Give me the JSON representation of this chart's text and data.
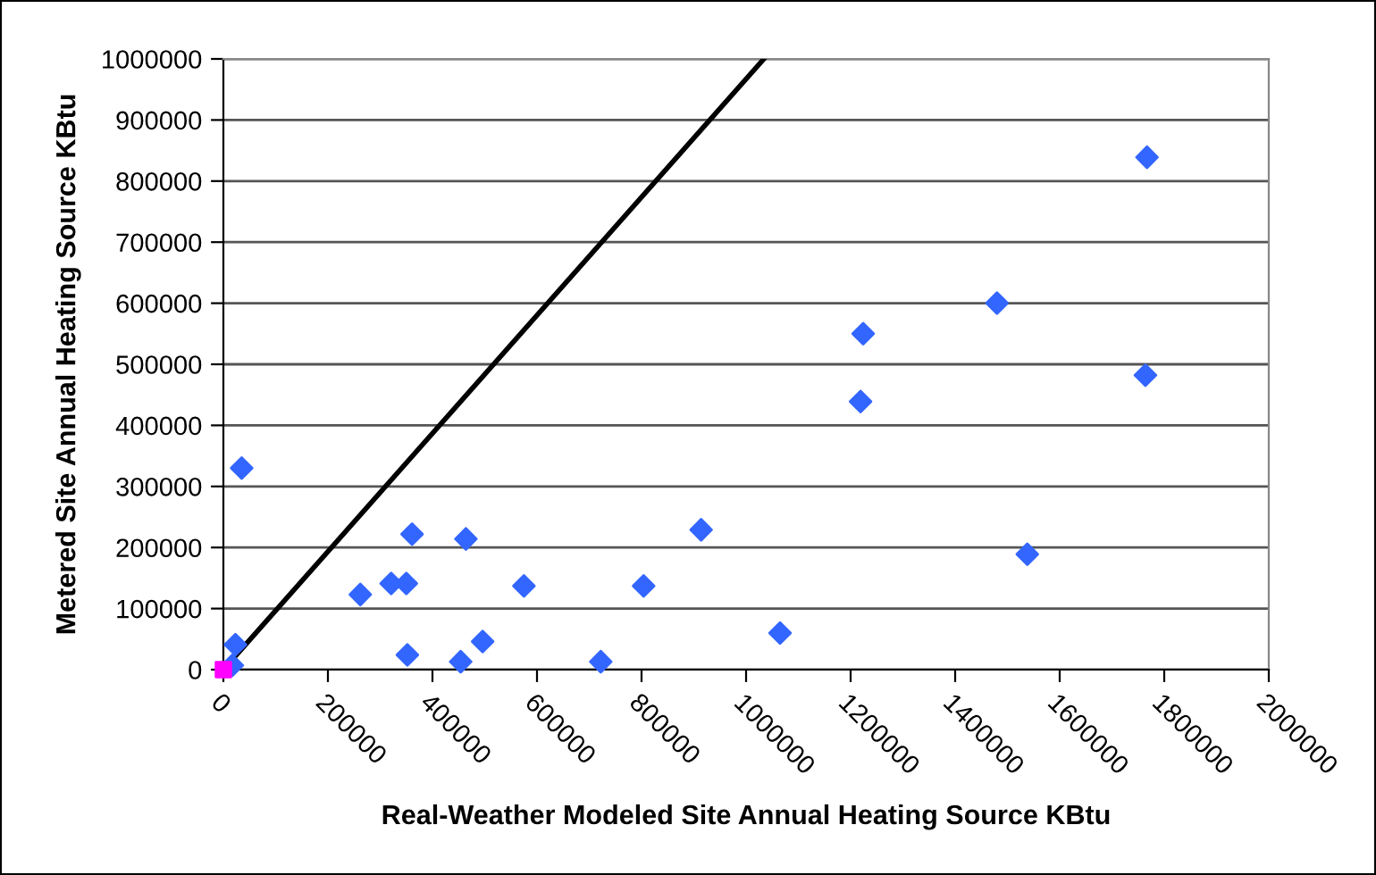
{
  "chart_data": {
    "type": "scatter",
    "xlabel": "Real-Weather Modeled Site Annual Heating Source KBtu",
    "ylabel": "Metered Site Annual Heating Source KBtu",
    "xlim": [
      0,
      2000000
    ],
    "ylim": [
      0,
      1000000
    ],
    "xticks": [
      0,
      200000,
      400000,
      600000,
      800000,
      1000000,
      1200000,
      1400000,
      1600000,
      1800000,
      2000000
    ],
    "yticks": [
      0,
      100000,
      200000,
      300000,
      400000,
      500000,
      600000,
      700000,
      800000,
      900000,
      1000000
    ],
    "grid": "y",
    "legend": false,
    "series": [
      {
        "marker": "diamond",
        "color": "#3366ff",
        "x": [
          35000,
          23000,
          null,
          17000,
          262000,
          321000,
          350000,
          361000,
          352000,
          464000,
          454000,
          496000,
          575000,
          722000,
          804000,
          914000,
          1065000,
          1538000,
          1224000,
          1219000,
          1480000,
          1764000,
          1767000
        ],
        "values": [
          330000,
          41000,
          null,
          7000,
          123000,
          141000,
          141000,
          222000,
          24000,
          214000,
          13000,
          46000,
          137000,
          13000,
          137000,
          229000,
          60000,
          189000,
          550000,
          439000,
          600000,
          482000,
          839000
        ]
      },
      {
        "marker": "square",
        "color": "#ff00ff",
        "x": [
          0
        ],
        "values": [
          0
        ]
      },
      {
        "type": "line",
        "marker": "none",
        "color": "#000000",
        "x": [
          0,
          1034000
        ],
        "values": [
          0,
          1000000
        ]
      }
    ]
  }
}
